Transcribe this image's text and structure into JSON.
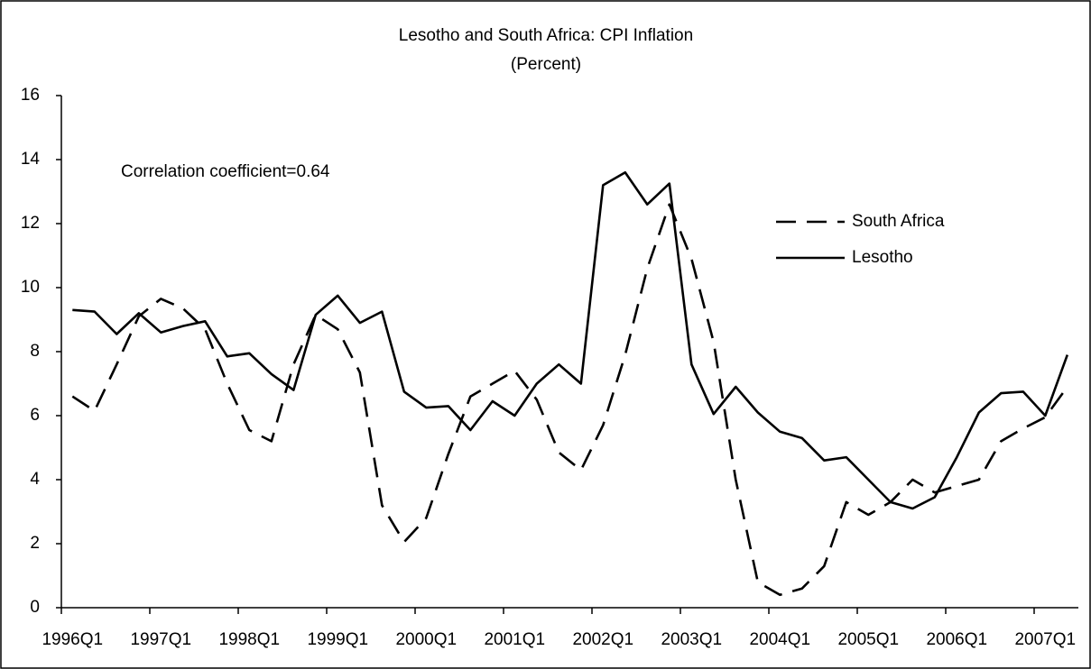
{
  "chart_data": {
    "type": "line",
    "title": "Lesotho and South Africa: CPI Inflation",
    "subtitle": "(Percent)",
    "annotation": "Correlation coefficient=0.64",
    "categories": [
      "1996Q1",
      null,
      null,
      null,
      "1997Q1",
      null,
      null,
      null,
      "1998Q1",
      null,
      null,
      null,
      "1999Q1",
      null,
      null,
      null,
      "2000Q1",
      null,
      null,
      null,
      "2001Q1",
      null,
      null,
      null,
      "2002Q1",
      null,
      null,
      null,
      "2003Q1",
      null,
      null,
      null,
      "2004Q1",
      null,
      null,
      null,
      "2005Q1",
      null,
      null,
      null,
      "2006Q1",
      null,
      null,
      null,
      "2007Q1",
      null
    ],
    "series": [
      {
        "name": "South Africa",
        "color": "#000000",
        "dash": true,
        "values": [
          6.6,
          6.15,
          7.6,
          9.1,
          9.65,
          9.35,
          8.7,
          7.0,
          5.55,
          5.2,
          7.6,
          9.15,
          8.7,
          7.35,
          3.2,
          2.05,
          2.8,
          4.8,
          6.6,
          7.0,
          7.4,
          6.5,
          4.85,
          4.3,
          5.7,
          7.9,
          10.6,
          12.6,
          10.9,
          8.3,
          4.0,
          0.8,
          0.4,
          0.6,
          1.3,
          3.3,
          2.9,
          3.3,
          4.0,
          3.6,
          3.8,
          4.0,
          5.2,
          5.6,
          5.95,
          6.9
        ]
      },
      {
        "name": "Lesotho",
        "color": "#000000",
        "dash": false,
        "values": [
          9.3,
          9.25,
          8.55,
          9.2,
          8.6,
          8.8,
          8.95,
          7.85,
          7.95,
          7.3,
          6.8,
          9.15,
          9.75,
          8.9,
          9.25,
          6.75,
          6.25,
          6.3,
          5.55,
          6.45,
          6.0,
          7.0,
          7.6,
          7.0,
          13.2,
          13.6,
          12.6,
          13.25,
          7.6,
          6.05,
          6.9,
          6.1,
          5.5,
          5.3,
          4.6,
          4.7,
          4.0,
          3.3,
          3.1,
          3.45,
          4.7,
          6.1,
          6.7,
          6.75,
          6.0,
          7.9
        ]
      }
    ],
    "ylim": [
      0,
      16
    ],
    "yticks": [
      0,
      2,
      4,
      6,
      8,
      10,
      12,
      14,
      16
    ],
    "grid": false,
    "legend": "upper right"
  }
}
